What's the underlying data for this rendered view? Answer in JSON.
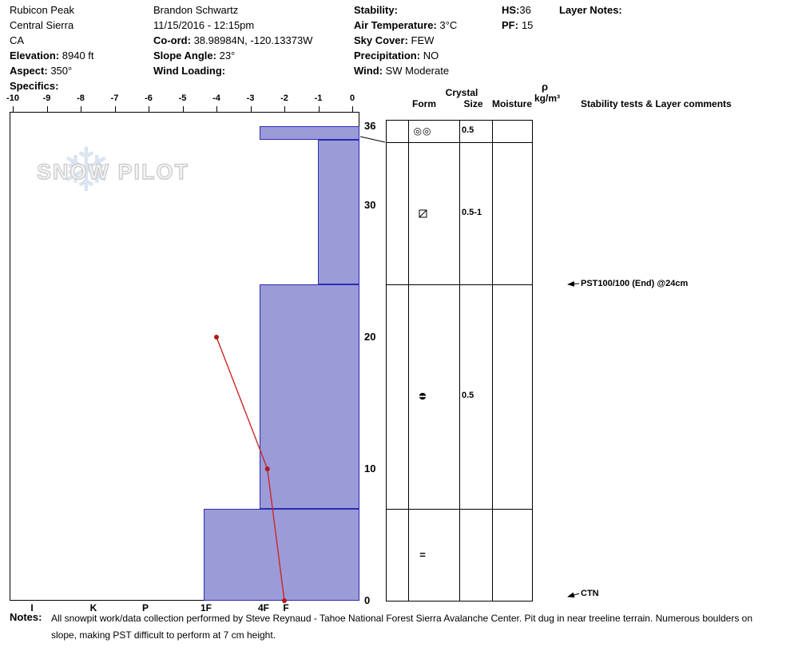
{
  "header": {
    "location": {
      "name": "Rubicon Peak",
      "range": "Central Sierra",
      "state": "CA",
      "elevation_label": "Elevation:",
      "elevation_value": "8940 ft",
      "aspect_label": "Aspect:",
      "aspect_value": "350°",
      "specifics_label": "Specifics:"
    },
    "observer": {
      "name": "Brandon Schwartz",
      "datetime": "11/15/2016 - 12:15pm",
      "coord_label": "Co-ord:",
      "coord_value": "38.98984N, -120.13373W",
      "slope_angle_label": "Slope Angle:",
      "slope_angle_value": "23°",
      "wind_loading_label": "Wind Loading:"
    },
    "conditions": {
      "stability_label": "Stability:",
      "air_temp_label": "Air Temperature:",
      "air_temp_value": "3°C",
      "sky_cover_label": "Sky Cover:",
      "sky_cover_value": "FEW",
      "precip_label": "Precipitation:",
      "precip_value": "NO",
      "wind_label": "Wind:",
      "wind_value": "SW Moderate"
    },
    "summary": {
      "hs_label": "HS:",
      "hs_value": "36",
      "pf_label": "PF:",
      "pf_value": "15"
    },
    "layer_notes_label": "Layer Notes:"
  },
  "watermark": {
    "snowflake_glyph": "❄",
    "text": "SNOW PILOT"
  },
  "panel_headers": {
    "crystal": "Crystal",
    "form": "Form",
    "size": "Size",
    "moisture": "Moisture",
    "density_symbol": "ρ",
    "density_units": "kg/m³",
    "stability": "Stability tests & Layer comments"
  },
  "chart_data": {
    "type": "snow-profile",
    "temp_axis": {
      "unit": "°C",
      "ticks": [
        -10,
        -9,
        -8,
        -7,
        -6,
        -5,
        -4,
        -3,
        -2,
        -1,
        0
      ],
      "range": [
        -10,
        0
      ]
    },
    "depth_axis": {
      "unit": "cm",
      "ticks": [
        36,
        30,
        20,
        10,
        0
      ],
      "range": [
        0,
        36
      ]
    },
    "hardness_axis": {
      "labels": [
        "I",
        "K",
        "P",
        "1F",
        "4F",
        "F"
      ]
    },
    "layers": [
      {
        "top_cm": 36,
        "bottom_cm": 35,
        "hardness": "4F",
        "form": "double-circle",
        "grain_size_mm": "0.5",
        "moisture": "",
        "density": ""
      },
      {
        "top_cm": 35,
        "bottom_cm": 24,
        "hardness": "F",
        "form": "square-slash",
        "grain_size_mm": "0.5-1",
        "moisture": "",
        "density": ""
      },
      {
        "top_cm": 24,
        "bottom_cm": 7,
        "hardness": "4F",
        "form": "dot-bar",
        "grain_size_mm": "0.5",
        "moisture": "",
        "density": ""
      },
      {
        "top_cm": 7,
        "bottom_cm": 0,
        "hardness": "1F",
        "form": "double-dash",
        "grain_size_mm": "",
        "moisture": "",
        "density": ""
      }
    ],
    "temperature_profile": [
      {
        "depth_cm": 20,
        "temp_c": -4.0
      },
      {
        "depth_cm": 10,
        "temp_c": -2.5
      },
      {
        "depth_cm": 0,
        "temp_c": -2.0
      }
    ],
    "stability_annotations": [
      {
        "depth_cm": 24,
        "text": "PST100/100 (End) @24cm"
      },
      {
        "depth_cm": 0,
        "text": "CTN"
      }
    ],
    "colors": {
      "bar_fill": "#9b9bd8",
      "bar_border": "#2b2bb0",
      "temp_line": "#cc2626",
      "temp_point": "#b01a1a"
    }
  },
  "notes": {
    "label": "Notes:",
    "line1": "All snowpit work/data collection performed by Steve Reynaud - Tahoe National Forest Sierra Avalanche Center. Pit dug in near treeline terrain. Numerous boulders on",
    "line2": "slope, making PST difficult to perform at 7 cm height."
  }
}
